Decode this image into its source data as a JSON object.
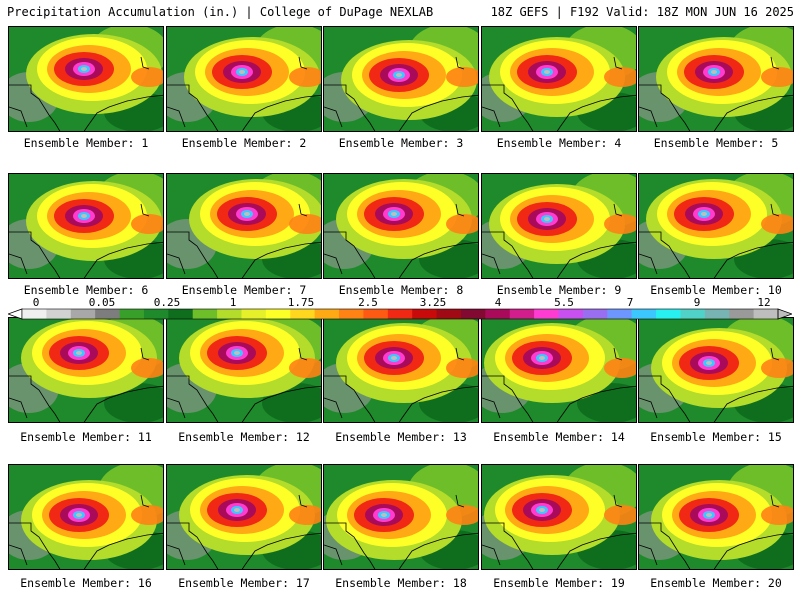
{
  "header": {
    "left": "Precipitation Accumulation (in.) | College of DuPage NEXLAB",
    "right": "18Z GEFS | F192 Valid: 18Z MON JUN 16 2025"
  },
  "members": [
    {
      "label": "Ensemble Member: 1"
    },
    {
      "label": "Ensemble Member: 2"
    },
    {
      "label": "Ensemble Member: 3"
    },
    {
      "label": "Ensemble Member: 4"
    },
    {
      "label": "Ensemble Member: 5"
    },
    {
      "label": "Ensemble Member: 6"
    },
    {
      "label": "Ensemble Member: 7"
    },
    {
      "label": "Ensemble Member: 8"
    },
    {
      "label": "Ensemble Member: 9"
    },
    {
      "label": "Ensemble Member: 10"
    },
    {
      "label": "Ensemble Member: 11"
    },
    {
      "label": "Ensemble Member: 12"
    },
    {
      "label": "Ensemble Member: 13"
    },
    {
      "label": "Ensemble Member: 14"
    },
    {
      "label": "Ensemble Member: 15"
    },
    {
      "label": "Ensemble Member: 16"
    },
    {
      "label": "Ensemble Member: 17"
    },
    {
      "label": "Ensemble Member: 18"
    },
    {
      "label": "Ensemble Member: 19"
    },
    {
      "label": "Ensemble Member: 20"
    }
  ],
  "colorbar": {
    "labels": [
      "0",
      "0.05",
      "0.25",
      "1",
      "1.75",
      "2.5",
      "3.25",
      "4",
      "5.5",
      "7",
      "9",
      "12"
    ],
    "colors": [
      "#f0f0f0",
      "#d2d2d2",
      "#a8a8a8",
      "#7d7d7d",
      "#38a02a",
      "#1f8a2b",
      "#0f6e1e",
      "#6ebe2a",
      "#b4dc2a",
      "#e6f02a",
      "#ffff28",
      "#ffd71e",
      "#ffaa14",
      "#ff8214",
      "#ff5a14",
      "#f02814",
      "#c80a0a",
      "#a00a14",
      "#820a32",
      "#aa0a5a",
      "#d21e8c",
      "#ff3cd2",
      "#c850f0",
      "#9a6ef0",
      "#6e96ff",
      "#3cc8ff",
      "#28f0f0",
      "#50d2c8",
      "#78b4b4",
      "#9a9a9a",
      "#bebebe"
    ]
  }
}
